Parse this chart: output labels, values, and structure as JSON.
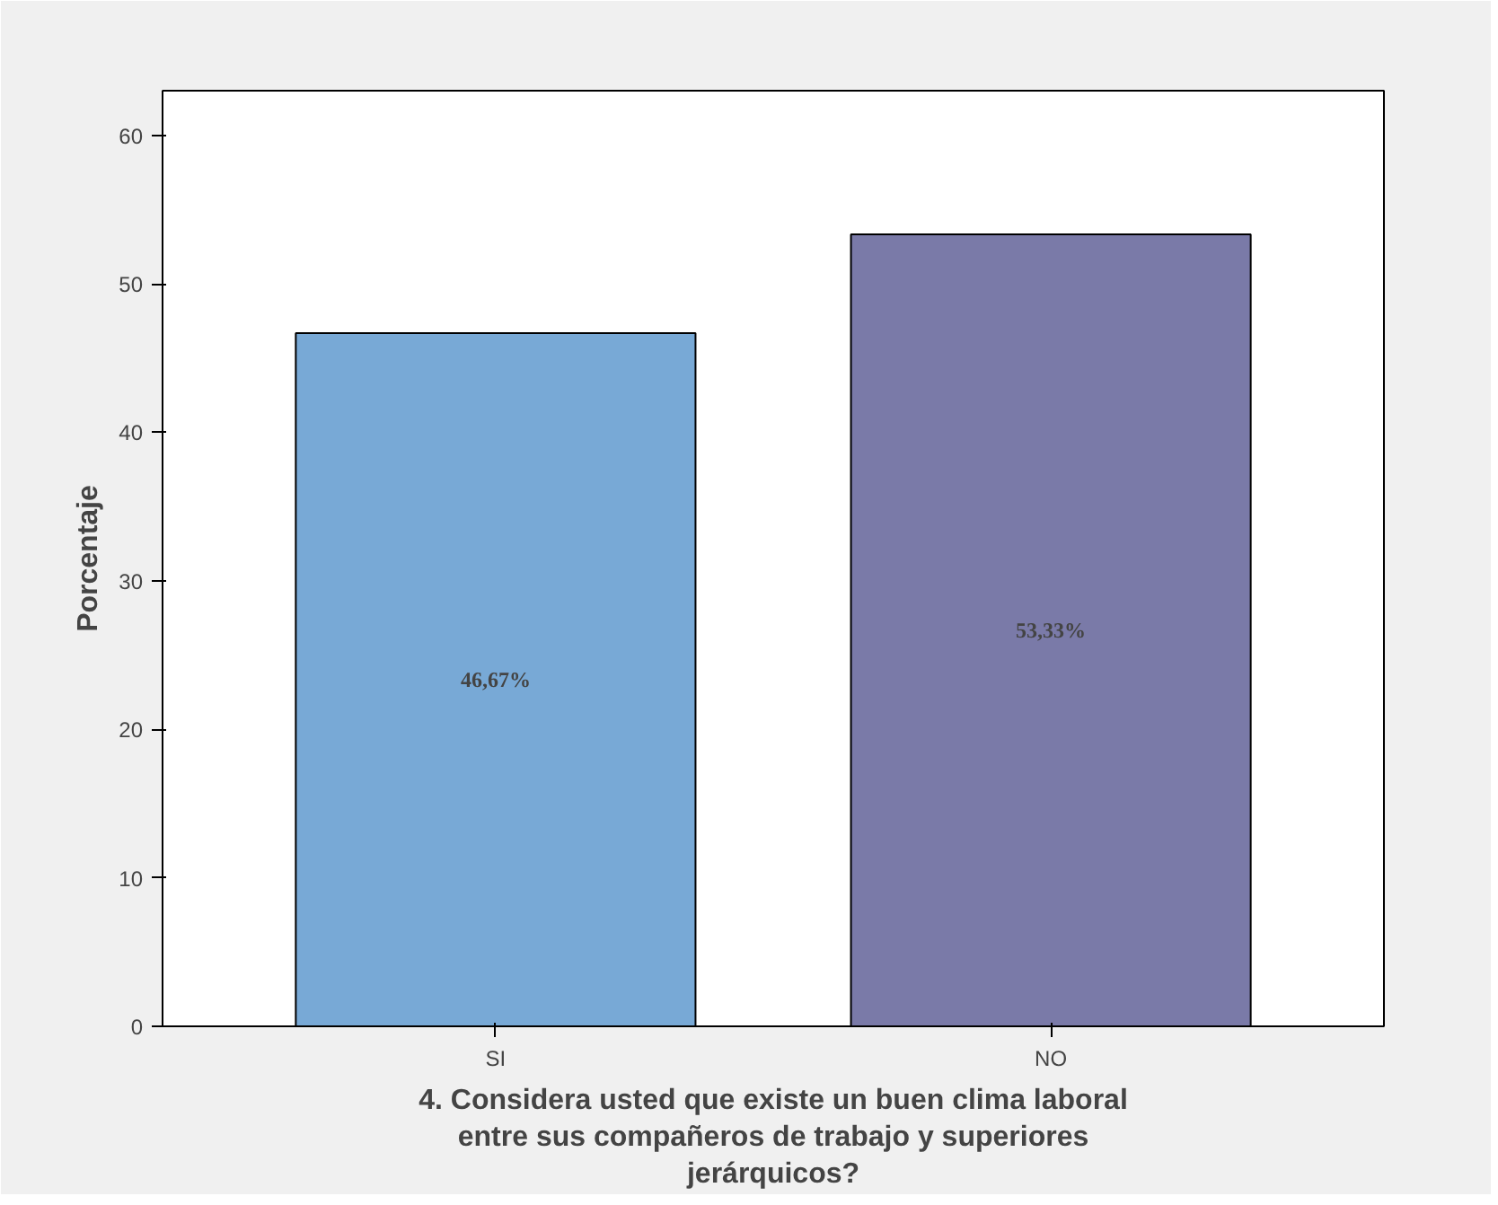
{
  "chart_data": {
    "type": "bar",
    "xlabel": "4. Considera usted que existe un buen clima laboral entre sus compañeros de trabajo y superiores jerárquicos?",
    "ylabel": "Porcentaje",
    "categories": [
      "SI",
      "NO"
    ],
    "values": [
      46.67,
      53.33
    ],
    "colors": [
      "#78a9d6",
      "#7a7aa8"
    ],
    "value_labels": [
      "46,67%",
      "53,33%"
    ],
    "ylim": [
      0,
      63
    ],
    "yticks": [
      0,
      10,
      20,
      30,
      40,
      50,
      60
    ],
    "grid": false
  }
}
